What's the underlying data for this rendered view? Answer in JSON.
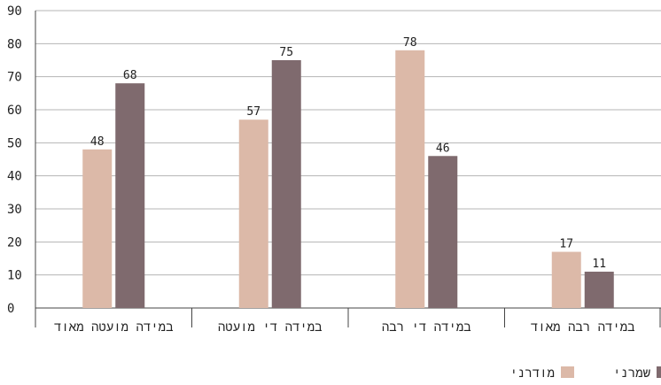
{
  "chart_data": {
    "type": "bar",
    "categories": [
      "במידה מועטה מאוד",
      "במידה די מועטה",
      "במידה די רבה",
      "במידה רבה מאוד"
    ],
    "series": [
      {
        "name": "מודרני",
        "values": [
          48,
          57,
          78,
          17
        ],
        "color": "#dcb9a8"
      },
      {
        "name": "שמרני",
        "values": [
          68,
          75,
          46,
          11
        ],
        "color": "#7f6a6e"
      }
    ],
    "ylim": [
      0,
      90
    ],
    "yticks": [
      0,
      10,
      20,
      30,
      40,
      50,
      60,
      70,
      80,
      90
    ],
    "grid": true,
    "legend": "bottom-right",
    "data_labels": true
  }
}
